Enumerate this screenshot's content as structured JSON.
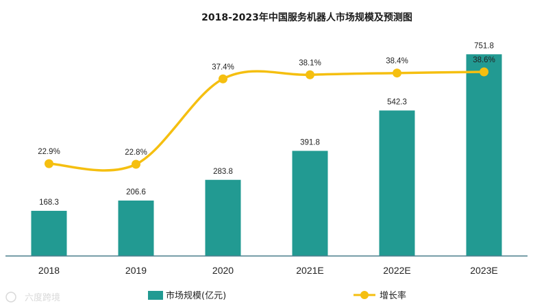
{
  "chart_data": {
    "type": "bar",
    "title": "2018-2023年中国服务机器人市场规模及预测图",
    "categories": [
      "2018",
      "2019",
      "2020",
      "2021E",
      "2022E",
      "2023E"
    ],
    "series": [
      {
        "name": "市场规模(亿元)",
        "kind": "bar",
        "values": [
          168.3,
          206.6,
          283.8,
          391.8,
          542.3,
          751.8
        ],
        "labels": [
          "168.3",
          "206.6",
          "283.8",
          "391.8",
          "542.3",
          "751.8"
        ],
        "color": "#229a92"
      },
      {
        "name": "增长率",
        "kind": "line",
        "values": [
          22.9,
          22.8,
          37.4,
          38.1,
          38.4,
          38.6
        ],
        "labels": [
          "22.9%",
          "22.8%",
          "37.4%",
          "38.1%",
          "38.4%",
          "38.6%"
        ],
        "color": "#f5bf10"
      }
    ],
    "ylim": [
      0,
      780
    ],
    "y2lim": [
      0,
      42
    ],
    "grid": false,
    "legend": "bottom",
    "xlabel": "",
    "ylabel": ""
  },
  "watermark": "六度跨境",
  "colors": {
    "axis": "#4a7f8c",
    "text": "#222222"
  }
}
